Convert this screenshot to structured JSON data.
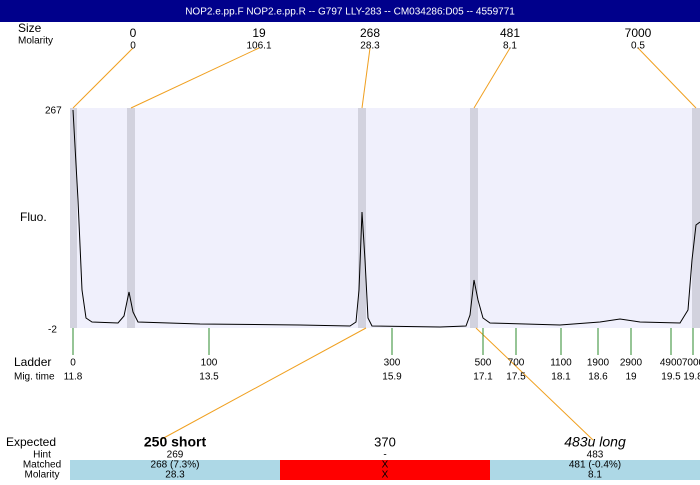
{
  "header": {
    "title": "NOP2.e.pp.F  NOP2.e.pp.R -- G797 LLY-283 -- CM034286:D05 -- 4559771"
  },
  "top": {
    "size_label": "Size",
    "molarity_label": "Molarity",
    "peaks": [
      {
        "size": "0",
        "molarity": "0"
      },
      {
        "size": "19",
        "molarity": "106.1"
      },
      {
        "size": "268",
        "molarity": "28.3"
      },
      {
        "size": "481",
        "molarity": "8.1"
      },
      {
        "size": "7000",
        "molarity": "0.5"
      }
    ]
  },
  "plot": {
    "y_label": "Fluo.",
    "y_max": "267",
    "y_min": "-2"
  },
  "ladder": {
    "label": "Ladder",
    "time_label": "Mig. time",
    "items": [
      {
        "size": "0",
        "time": "11.8"
      },
      {
        "size": "100",
        "time": "13.5"
      },
      {
        "size": "300",
        "time": "15.9"
      },
      {
        "size": "500",
        "time": "17.1"
      },
      {
        "size": "700",
        "time": "17.5"
      },
      {
        "size": "1100",
        "time": "18.1"
      },
      {
        "size": "1900",
        "time": "18.6"
      },
      {
        "size": "2900",
        "time": "19"
      },
      {
        "size": "4900",
        "time": "19.5"
      },
      {
        "size": "7000",
        "time": "19.8"
      }
    ]
  },
  "table": {
    "labels": {
      "expected": "Expected",
      "hint": "Hint",
      "matched": "Matched",
      "molarity": "Molarity"
    },
    "columns": [
      {
        "expected": "250 short",
        "hint": "269",
        "matched": "268 (7.3%)",
        "molarity": "28.3"
      },
      {
        "expected": "370",
        "hint": "-",
        "matched": "X",
        "molarity": "X"
      },
      {
        "expected": "483u long",
        "hint": "483",
        "matched": "481 (-0.4%)",
        "molarity": "8.1"
      }
    ]
  }
}
